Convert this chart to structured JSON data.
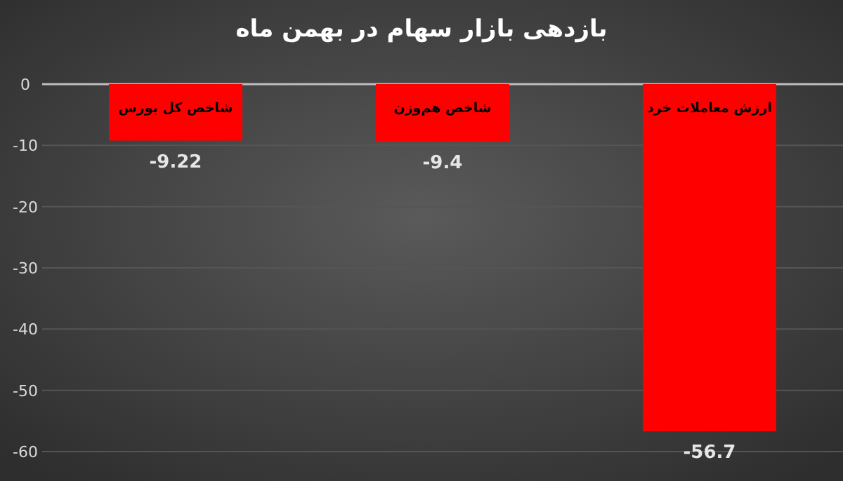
{
  "chart_data": {
    "type": "bar",
    "title": "بازدهی بازار سهام در بهمن ماه",
    "categories": [
      "شاخص کل بورس",
      "شاخص هم‌وزن",
      "ارزش معاملات خرد"
    ],
    "values": [
      -9.22,
      -9.4,
      -56.7
    ],
    "color": "#ff0000",
    "ylim": [
      -60,
      0
    ],
    "yticks": [
      0,
      -10,
      -20,
      -30,
      -40,
      -50,
      -60
    ],
    "grid": "y",
    "data_labels": true
  }
}
